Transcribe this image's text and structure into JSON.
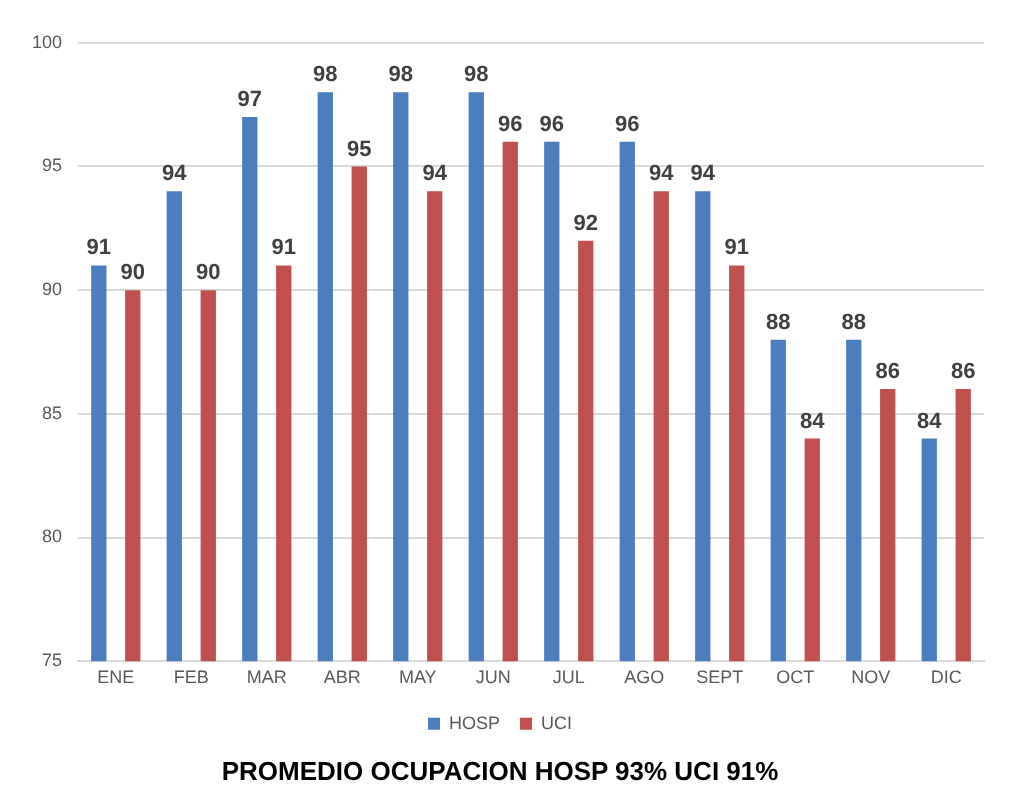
{
  "chart_data": {
    "type": "bar",
    "title": "PROMEDIO OCUPACION HOSP 93% UCI 91%",
    "categories": [
      "ENE",
      "FEB",
      "MAR",
      "ABR",
      "MAY",
      "JUN",
      "JUL",
      "AGO",
      "SEPT",
      "OCT",
      "NOV",
      "DIC"
    ],
    "series": [
      {
        "name": "HOSP",
        "color": "#4a7ebf",
        "values": [
          91,
          94,
          97,
          98,
          98,
          98,
          96,
          96,
          94,
          88,
          88,
          84
        ]
      },
      {
        "name": "UCI",
        "color": "#c0504d",
        "values": [
          90,
          90,
          91,
          95,
          94,
          96,
          92,
          94,
          91,
          84,
          86,
          86
        ]
      }
    ],
    "ylim": [
      75,
      100
    ],
    "yticks": [
      75,
      80,
      85,
      90,
      95,
      100
    ],
    "grid": "y",
    "legend": "bottom",
    "data_labels": true
  }
}
